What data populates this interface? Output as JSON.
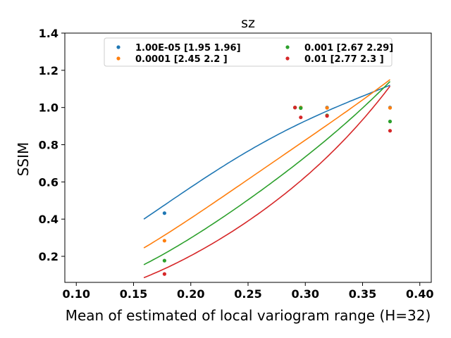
{
  "chart_data": {
    "type": "scatter",
    "title": "sz",
    "xlabel": "Mean of estimated of local variogram range (H=32)",
    "ylabel": "SSIM",
    "xlim": [
      0.09,
      0.41
    ],
    "ylim": [
      0.06,
      1.4
    ],
    "xticks": [
      "0.10",
      "0.15",
      "0.20",
      "0.25",
      "0.30",
      "0.35",
      "0.40"
    ],
    "xtick_values": [
      0.1,
      0.15,
      0.2,
      0.25,
      0.3,
      0.35,
      0.4
    ],
    "yticks": [
      "0.2",
      "0.4",
      "0.6",
      "0.8",
      "1.0",
      "1.2",
      "1.4"
    ],
    "ytick_values": [
      0.2,
      0.4,
      0.6,
      0.8,
      1.0,
      1.2,
      1.4
    ],
    "grid": false,
    "legend_position": "top-center",
    "fit_x_range": [
      0.159,
      0.374
    ],
    "series": [
      {
        "name": "1.00E-05 [1.95 1.96]",
        "color": "#1f77b4",
        "fit_params": [
          1.95,
          1.96
        ],
        "x": [
          0.177,
          0.291,
          0.296,
          0.319,
          0.374
        ],
        "y": [
          0.432,
          1.0,
          1.0,
          1.0,
          1.0
        ]
      },
      {
        "name": "0.0001 [2.45 2.2 ]",
        "color": "#ff7f0e",
        "fit_params": [
          2.45,
          2.2
        ],
        "x": [
          0.177,
          0.291,
          0.296,
          0.319,
          0.374
        ],
        "y": [
          0.284,
          1.0,
          1.0,
          0.998,
          0.998
        ]
      },
      {
        "name": "0.001 [2.67 2.29]",
        "color": "#2ca02c",
        "fit_params": [
          2.67,
          2.29
        ],
        "x": [
          0.177,
          0.291,
          0.296,
          0.319,
          0.374
        ],
        "y": [
          0.177,
          1.0,
          0.997,
          0.958,
          0.925
        ]
      },
      {
        "name": "0.01 [2.77 2.3 ]",
        "color": "#d62728",
        "fit_params": [
          2.77,
          2.3
        ],
        "x": [
          0.177,
          0.291,
          0.296,
          0.319,
          0.374
        ],
        "y": [
          0.105,
          1.0,
          0.947,
          0.955,
          0.875
        ]
      }
    ]
  }
}
